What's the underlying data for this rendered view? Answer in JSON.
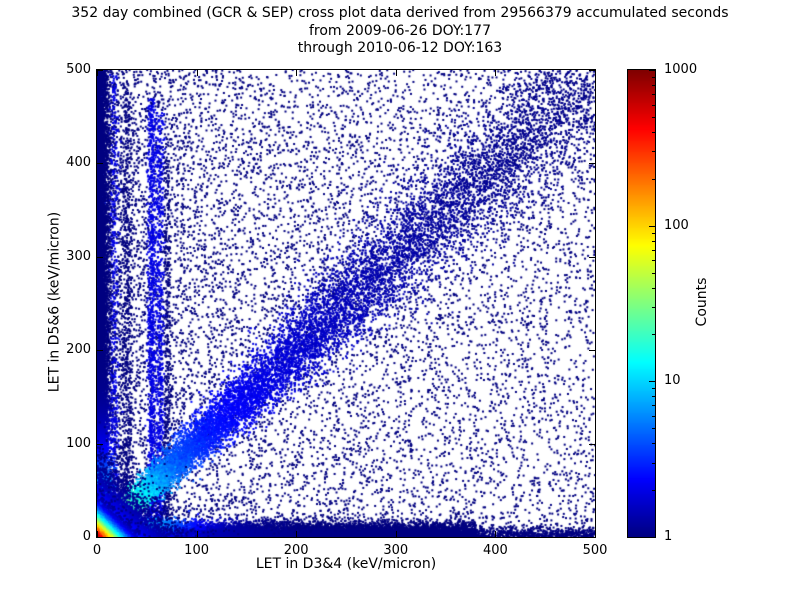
{
  "title": {
    "line1": "352 day combined (GCR & SEP) cross plot data derived from 29566379 accumulated seconds",
    "line2": "from 2009-06-26 DOY:177",
    "line3": "through 2010-06-12 DOY:163"
  },
  "chart_data": {
    "type": "scatter",
    "subtype": "2D histogram cross plot of particle LET coincidence counts, jet colormap on log color scale",
    "title": "352 day combined (GCR & SEP) cross plot data derived from 29566379 accumulated seconds\nfrom 2009-06-26 DOY:177\nthrough 2010-06-12 DOY:163",
    "xlabel": "LET in D3&4 (keV/micron)",
    "ylabel": "LET in D5&6 (keV/micron)",
    "xlim": [
      0,
      500
    ],
    "ylim": [
      0,
      500
    ],
    "xticks": [
      0,
      100,
      200,
      300,
      400,
      500
    ],
    "yticks": [
      0,
      100,
      200,
      300,
      400,
      500
    ],
    "grid": false,
    "point_base_color": "#00007f",
    "colorbar": {
      "label": "Counts",
      "scale": "log",
      "min": 1,
      "max": 1000,
      "ticks": [
        1,
        10,
        100,
        1000
      ],
      "colormap": "jet",
      "position": "right"
    },
    "features": [
      "hot spot (red/orange core, counts approaching 1000) at the origin below ~15 keV/micron in both detectors",
      "dense diagonal band along y = x from the origin toward (500,500); cyan/green near origin fading to sparse dark blue beyond ~300",
      "dense horizontal band along y ~ 0 extending to x ~ 350",
      "dense vertical band along x ~ 0 extending to y ~ 500",
      "faint vertical streaks near x ~ 17, 30, 55, 63 and 71 keV/micron reaching high y values",
      "sparse single-count (dark blue) points scattered over the whole plane, denser toward low LET"
    ],
    "sim": {
      "seed": 42,
      "marker_px": 2,
      "components": [
        {
          "kind": "uniform",
          "n": 2600,
          "xmax": 500,
          "ymax": 500,
          "xpow": 1.0,
          "ypow": 1.0,
          "count": 1
        },
        {
          "kind": "uniform",
          "n": 8000,
          "xmax": 500,
          "ymax": 500,
          "xpow": 1.7,
          "ypow": 1.05,
          "count": 1
        },
        {
          "kind": "streak",
          "n": 2400,
          "x0": 3,
          "sigma": 1.6,
          "ymax": 500,
          "ypow": 1.0,
          "count": 3
        },
        {
          "kind": "streak",
          "n": 600,
          "x0": 17,
          "sigma": 2.5,
          "ymax": 495,
          "ypow": 1.2,
          "count": 2
        },
        {
          "kind": "streak",
          "n": 700,
          "x0": 30,
          "sigma": 3.0,
          "ymax": 490,
          "ypow": 1.35,
          "count": 1
        },
        {
          "kind": "streak",
          "n": 1100,
          "x0": 55,
          "sigma": 2.0,
          "ymax": 470,
          "ypow": 1.25,
          "count": 2
        },
        {
          "kind": "streak",
          "n": 850,
          "x0": 63,
          "sigma": 2.4,
          "ymax": 455,
          "ypow": 1.3,
          "count": 2
        },
        {
          "kind": "streak",
          "n": 500,
          "x0": 71,
          "sigma": 2.0,
          "ymax": 420,
          "ypow": 1.5,
          "count": 1
        },
        {
          "kind": "vband",
          "n": 9000,
          "max": 500,
          "pow": 1.35,
          "sigma": 6,
          "countA": 60,
          "countScale": 25
        },
        {
          "kind": "hband",
          "n": 12000,
          "max": 380,
          "pow": 1.45,
          "sigma": 7,
          "countA": 80,
          "countScale": 25
        },
        {
          "kind": "hband",
          "n": 2600,
          "max": 500,
          "pow": 1.0,
          "sigma": 5,
          "countA": 3,
          "countScale": 60
        },
        {
          "kind": "diag",
          "n": 15000,
          "tmax": 500,
          "tpow": 2.0,
          "sigma0": 2.5,
          "sigmaSlope": 0.065,
          "countA": 120,
          "countScale": 18,
          "countB": 4,
          "countScale2": 120
        },
        {
          "kind": "corner",
          "n": 9000,
          "scale": 16,
          "countA": 30,
          "countScale": 15
        },
        {
          "kind": "corner",
          "n": 20000,
          "scale": 6,
          "countA": 999,
          "countScale": 5.5
        }
      ]
    }
  }
}
